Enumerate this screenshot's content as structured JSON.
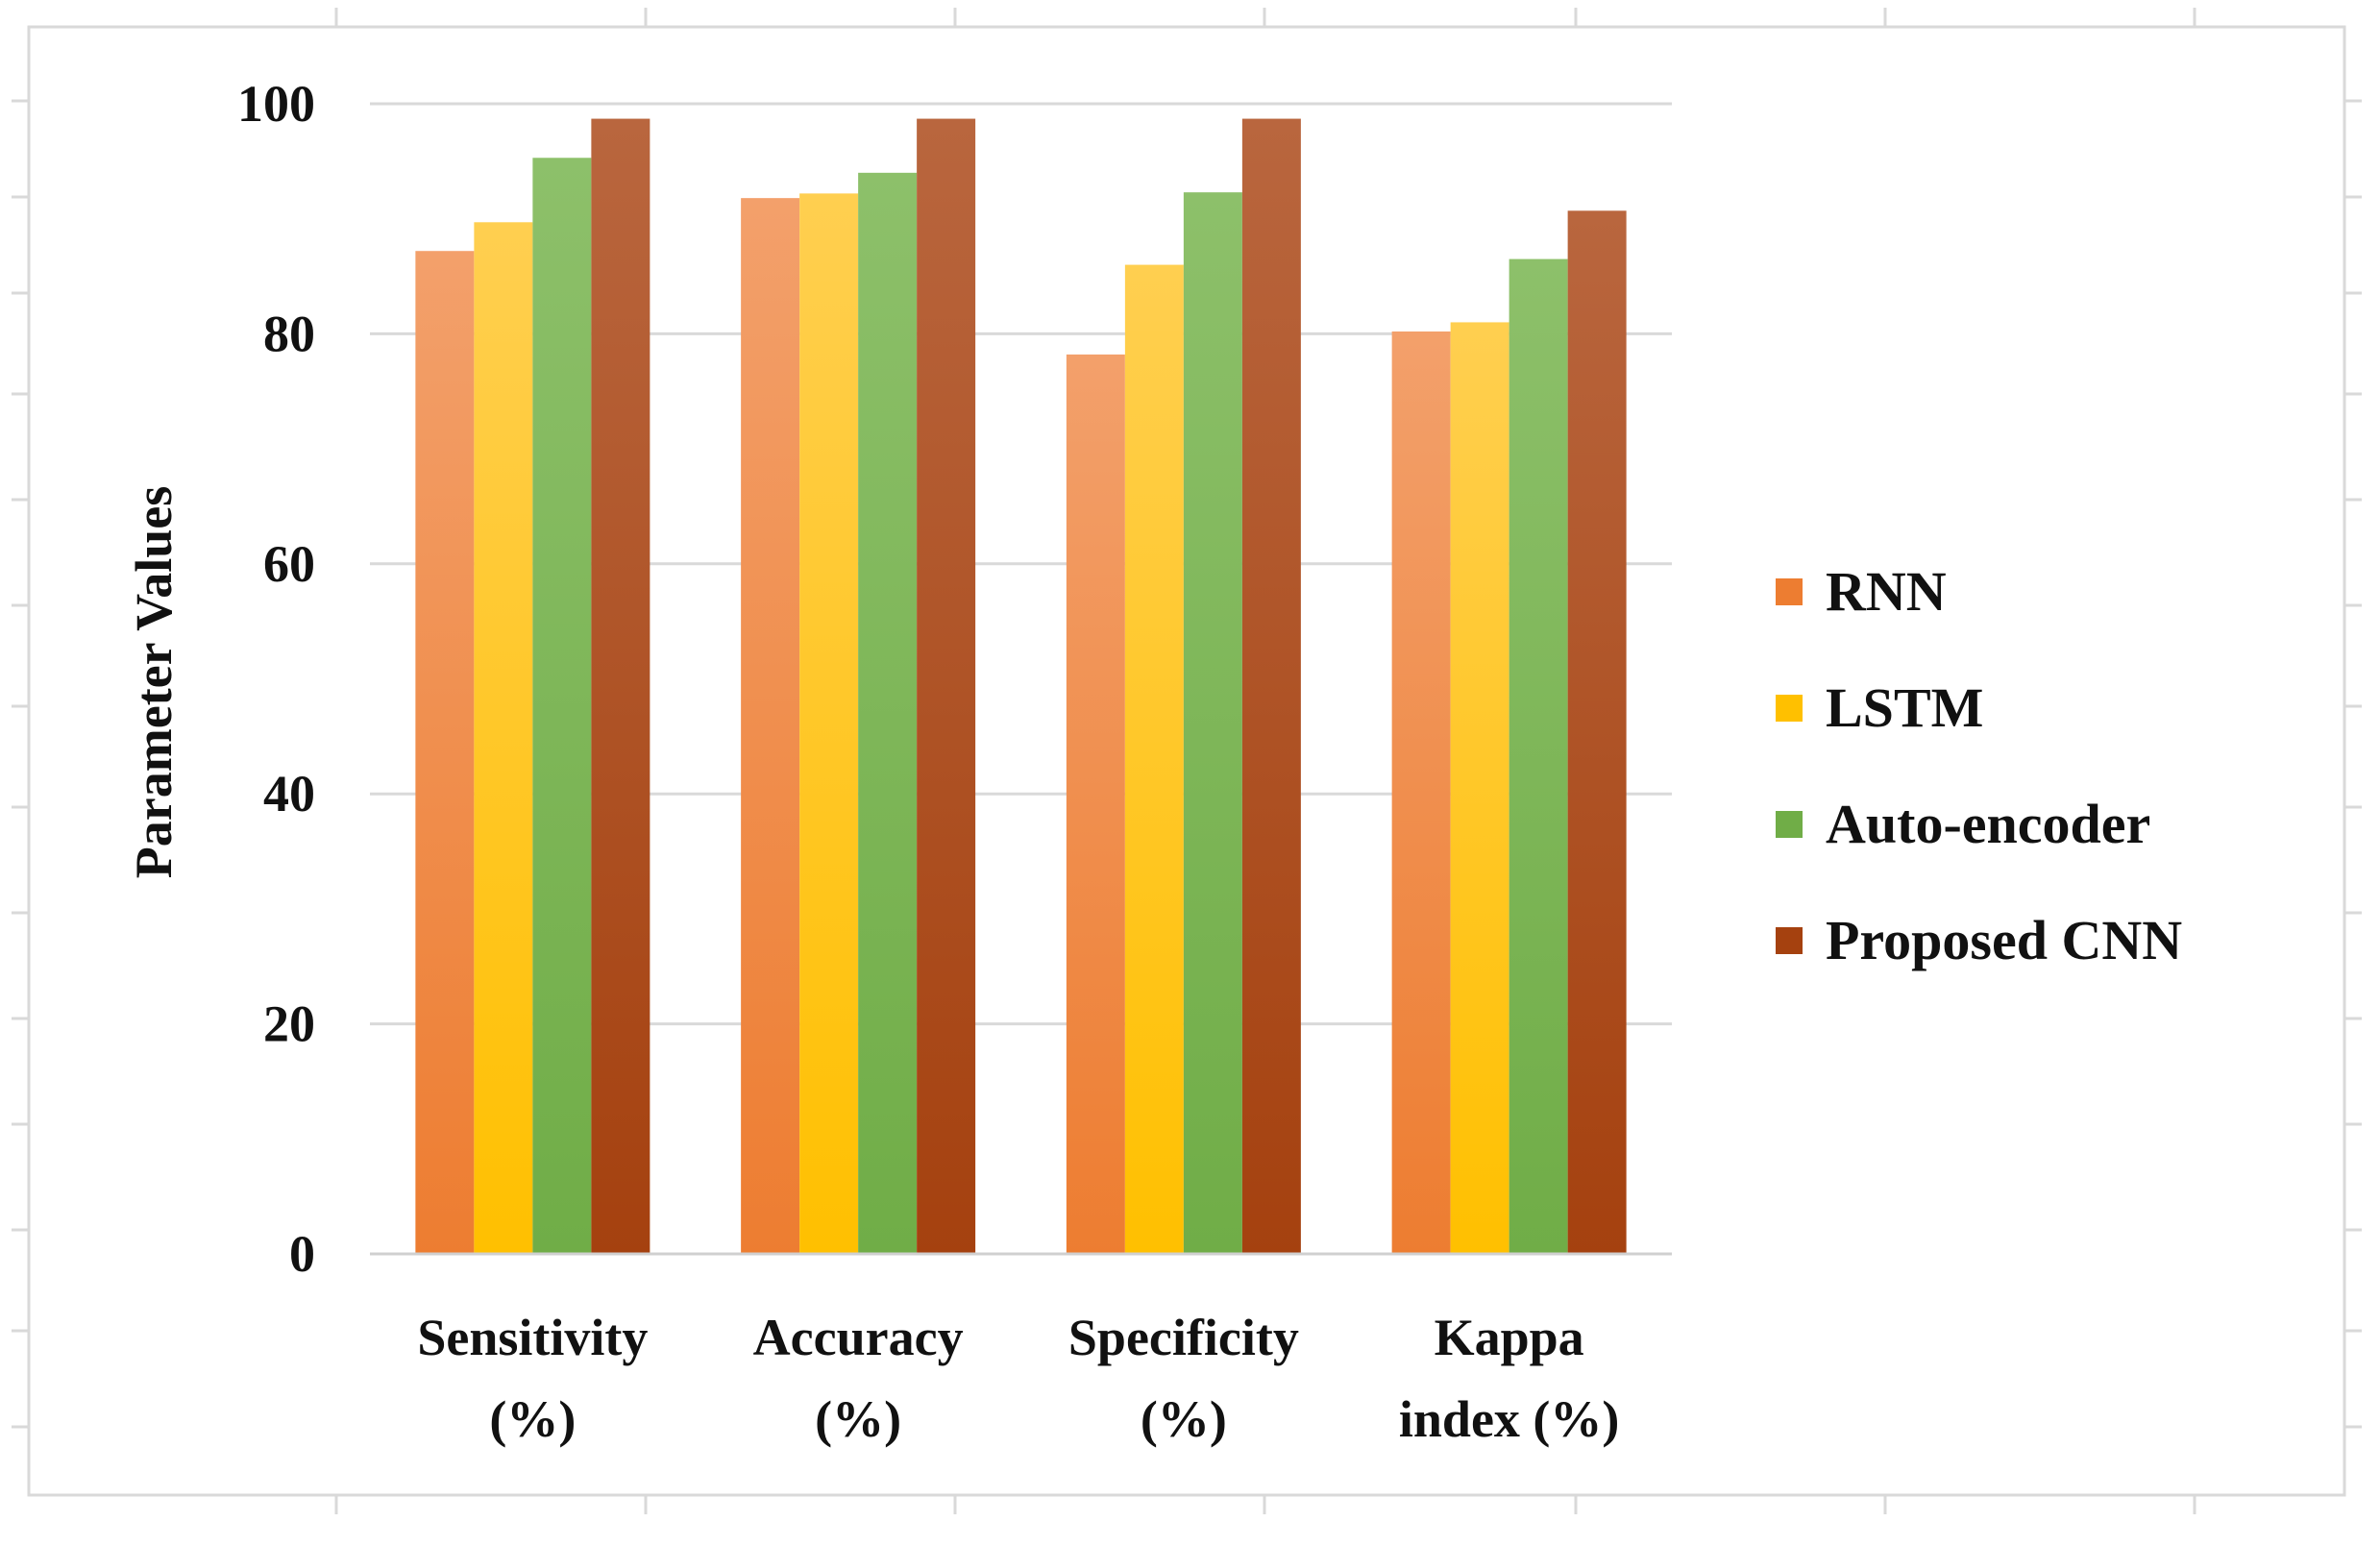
{
  "chart_data": {
    "type": "bar",
    "title": "",
    "xlabel": "",
    "ylabel": "Parameter Values",
    "ylim": [
      0,
      100
    ],
    "yticks": [
      0,
      20,
      40,
      60,
      80,
      100
    ],
    "grid": true,
    "legend_position": "right",
    "categories": [
      [
        "Sensitivity",
        "(%)"
      ],
      [
        "Accuracy",
        "(%)"
      ],
      [
        "Specificity",
        "(%)"
      ],
      [
        "Kappa",
        "index (%)"
      ]
    ],
    "series": [
      {
        "name": "RNN",
        "values": [
          87.2,
          91.8,
          78.2,
          80.2
        ],
        "color": "#ED7D31",
        "color_light": "#F3A06B"
      },
      {
        "name": "LSTM",
        "values": [
          89.7,
          92.2,
          86.0,
          81.0
        ],
        "color": "#FFC000",
        "color_light": "#FFCF50"
      },
      {
        "name": "Auto-encoder",
        "values": [
          95.3,
          94.0,
          92.3,
          86.5
        ],
        "color": "#70AD47",
        "color_light": "#8DC06A"
      },
      {
        "name": "Proposed CNN",
        "values": [
          98.7,
          98.7,
          98.7,
          90.7
        ],
        "color": "#A5410F",
        "color_light": "#B9663E"
      }
    ]
  }
}
